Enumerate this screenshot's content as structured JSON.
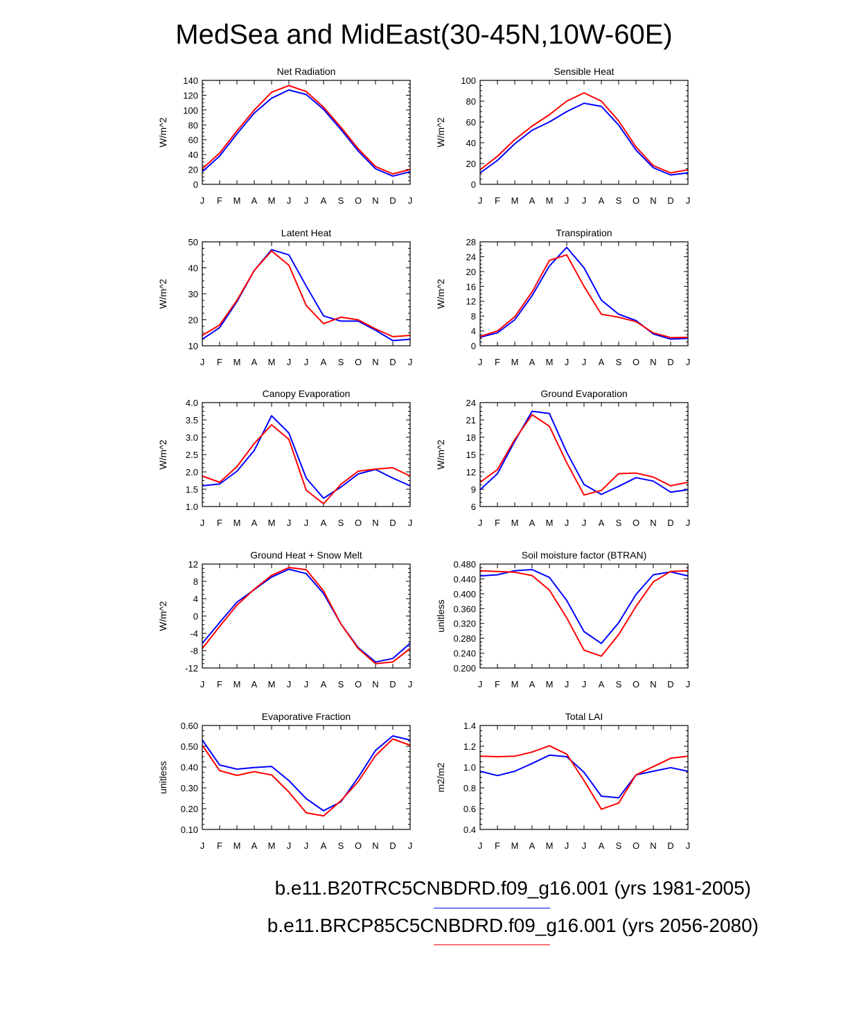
{
  "title": "MedSea and MidEast(30-45N,10W-60E)",
  "colors": {
    "series1": "#0000ff",
    "series2": "#ff0000"
  },
  "legend": [
    {
      "label": "b.e11.B20TRC5CNBDRD.f09_g16.001 (yrs 1981-2005)",
      "color": "#0000ff"
    },
    {
      "label": "b.e11.BRCP85C5CNBDRD.f09_g16.001 (yrs 2056-2080)",
      "color": "#ff0000"
    }
  ],
  "chart_data": [
    {
      "type": "line",
      "title": "Net Radiation",
      "ylabel": "W/m^2",
      "categories": [
        "J",
        "F",
        "M",
        "A",
        "M",
        "J",
        "J",
        "A",
        "S",
        "O",
        "N",
        "D",
        "J"
      ],
      "ylim": [
        0,
        140
      ],
      "yticks": [
        "0",
        "20",
        "40",
        "60",
        "80",
        "100",
        "120",
        "140"
      ],
      "series": [
        {
          "name": "b.e11.B20TRC5CNBDRD.f09_g16.001 (yrs 1981-2005)",
          "values": [
            17,
            38,
            68,
            96,
            116,
            127,
            121,
            101,
            74,
            45,
            21,
            11,
            17
          ]
        },
        {
          "name": "b.e11.BRCP85C5CNBDRD.f09_g16.001 (yrs 2056-2080)",
          "values": [
            21,
            42,
            72,
            100,
            124,
            133,
            125,
            104,
            77,
            48,
            24,
            14,
            20
          ]
        }
      ]
    },
    {
      "type": "line",
      "title": "Sensible Heat",
      "ylabel": "W/m^2",
      "categories": [
        "J",
        "F",
        "M",
        "A",
        "M",
        "J",
        "J",
        "A",
        "S",
        "O",
        "N",
        "D",
        "J"
      ],
      "ylim": [
        0,
        100
      ],
      "yticks": [
        "0",
        "20",
        "40",
        "60",
        "80",
        "100"
      ],
      "series": [
        {
          "name": "b.e11.B20TRC5CNBDRD.f09_g16.001 (yrs 1981-2005)",
          "values": [
            11,
            23,
            39,
            52,
            60,
            70,
            78,
            75,
            57,
            33,
            16,
            9,
            11
          ]
        },
        {
          "name": "b.e11.BRCP85C5CNBDRD.f09_g16.001 (yrs 2056-2080)",
          "values": [
            14,
            27,
            43,
            56,
            67,
            80,
            88,
            80,
            61,
            36,
            18,
            11,
            14
          ]
        }
      ]
    },
    {
      "type": "line",
      "title": "Latent Heat",
      "ylabel": "W/m^2",
      "categories": [
        "J",
        "F",
        "M",
        "A",
        "M",
        "J",
        "J",
        "A",
        "S",
        "O",
        "N",
        "D",
        "J"
      ],
      "ylim": [
        10,
        50
      ],
      "yticks": [
        "10",
        "20",
        "30",
        "40",
        "50"
      ],
      "series": [
        {
          "name": "b.e11.B20TRC5CNBDRD.f09_g16.001 (yrs 1981-2005)",
          "values": [
            12.5,
            17,
            27,
            39,
            47,
            45,
            33,
            21.5,
            19.5,
            19.5,
            16,
            12,
            12.5
          ]
        },
        {
          "name": "b.e11.BRCP85C5CNBDRD.f09_g16.001 (yrs 2056-2080)",
          "values": [
            14,
            18,
            27.5,
            39,
            46.5,
            41,
            25.5,
            18.5,
            21,
            20,
            16.5,
            13.5,
            14
          ]
        }
      ]
    },
    {
      "type": "line",
      "title": "Transpiration",
      "ylabel": "W/m^2",
      "categories": [
        "J",
        "F",
        "M",
        "A",
        "M",
        "J",
        "J",
        "A",
        "S",
        "O",
        "N",
        "D",
        "J"
      ],
      "ylim": [
        0,
        28
      ],
      "yticks": [
        "0",
        "4",
        "8",
        "12",
        "16",
        "20",
        "24",
        "28"
      ],
      "series": [
        {
          "name": "b.e11.B20TRC5CNBDRD.f09_g16.001 (yrs 1981-2005)",
          "values": [
            2.3,
            3.5,
            7,
            13.5,
            21.5,
            26.5,
            21,
            12.3,
            8.5,
            6.8,
            3.2,
            1.8,
            2
          ]
        },
        {
          "name": "b.e11.BRCP85C5CNBDRD.f09_g16.001 (yrs 2056-2080)",
          "values": [
            2.5,
            4,
            7.8,
            14.5,
            23,
            24.5,
            16,
            8.5,
            7.7,
            6.5,
            3.5,
            2.2,
            2.3
          ]
        }
      ]
    },
    {
      "type": "line",
      "title": "Canopy Evaporation",
      "ylabel": "W/m^2",
      "categories": [
        "J",
        "F",
        "M",
        "A",
        "M",
        "J",
        "J",
        "A",
        "S",
        "O",
        "N",
        "D",
        "J"
      ],
      "ylim": [
        1.0,
        4.0
      ],
      "yticks": [
        "1.0",
        "1.5",
        "2.0",
        "2.5",
        "3.0",
        "3.5",
        "4.0"
      ],
      "series": [
        {
          "name": "b.e11.B20TRC5CNBDRD.f09_g16.001 (yrs 1981-2005)",
          "values": [
            1.6,
            1.65,
            2.02,
            2.62,
            3.62,
            3.12,
            1.82,
            1.24,
            1.56,
            1.94,
            2.07,
            1.82,
            1.6
          ]
        },
        {
          "name": "b.e11.BRCP85C5CNBDRD.f09_g16.001 (yrs 2056-2080)",
          "values": [
            1.88,
            1.7,
            2.15,
            2.82,
            3.36,
            2.94,
            1.47,
            1.08,
            1.64,
            2.02,
            2.08,
            2.12,
            1.88
          ]
        }
      ]
    },
    {
      "type": "line",
      "title": "Ground Evaporation",
      "ylabel": "W/m^2",
      "categories": [
        "J",
        "F",
        "M",
        "A",
        "M",
        "J",
        "J",
        "A",
        "S",
        "O",
        "N",
        "D",
        "J"
      ],
      "ylim": [
        6,
        24
      ],
      "yticks": [
        "6",
        "9",
        "12",
        "15",
        "18",
        "21",
        "24"
      ],
      "series": [
        {
          "name": "b.e11.B20TRC5CNBDRD.f09_g16.001 (yrs 1981-2005)",
          "values": [
            8.9,
            11.7,
            17.3,
            22.5,
            22.1,
            15.4,
            9.8,
            8.1,
            9.5,
            11,
            10.4,
            8.5,
            8.9
          ]
        },
        {
          "name": "b.e11.BRCP85C5CNBDRD.f09_g16.001 (yrs 2056-2080)",
          "values": [
            10.2,
            12.4,
            17.6,
            21.9,
            19.9,
            13.6,
            8,
            8.8,
            11.7,
            11.8,
            11.1,
            9.6,
            10.2
          ]
        }
      ]
    },
    {
      "type": "line",
      "title": "Ground Heat + Snow Melt",
      "ylabel": "W/m^2",
      "categories": [
        "J",
        "F",
        "M",
        "A",
        "M",
        "J",
        "J",
        "A",
        "S",
        "O",
        "N",
        "D",
        "J"
      ],
      "ylim": [
        -12,
        12
      ],
      "yticks": [
        "-12",
        "-8",
        "-4",
        "0",
        "4",
        "8",
        "12"
      ],
      "series": [
        {
          "name": "b.e11.B20TRC5CNBDRD.f09_g16.001 (yrs 1981-2005)",
          "values": [
            -6.3,
            -1.5,
            3.2,
            6.1,
            9,
            10.8,
            9.8,
            5.2,
            -1.8,
            -7.3,
            -10.6,
            -9.8,
            -6.3
          ]
        },
        {
          "name": "b.e11.BRCP85C5CNBDRD.f09_g16.001 (yrs 2056-2080)",
          "values": [
            -7.5,
            -2.4,
            2.5,
            6.2,
            9.4,
            11.2,
            10.7,
            5.8,
            -1.8,
            -7.5,
            -11,
            -10.6,
            -7.5
          ]
        }
      ]
    },
    {
      "type": "line",
      "title": "Soil moisture factor (BTRAN)",
      "ylabel": "unitless",
      "categories": [
        "J",
        "F",
        "M",
        "A",
        "M",
        "J",
        "J",
        "A",
        "S",
        "O",
        "N",
        "D",
        "J"
      ],
      "ylim": [
        0.2,
        0.48
      ],
      "yticks": [
        "0.200",
        "0.240",
        "0.280",
        "0.320",
        "0.360",
        "0.400",
        "0.440",
        "0.480"
      ],
      "series": [
        {
          "name": "b.e11.B20TRC5CNBDRD.f09_g16.001 (yrs 1981-2005)",
          "values": [
            0.448,
            0.451,
            0.462,
            0.465,
            0.444,
            0.382,
            0.298,
            0.266,
            0.322,
            0.398,
            0.451,
            0.459,
            0.448
          ]
        },
        {
          "name": "b.e11.BRCP85C5CNBDRD.f09_g16.001 (yrs 2056-2080)",
          "values": [
            0.462,
            0.46,
            0.458,
            0.449,
            0.41,
            0.335,
            0.248,
            0.232,
            0.29,
            0.366,
            0.432,
            0.46,
            0.462
          ]
        }
      ]
    },
    {
      "type": "line",
      "title": "Evaporative Fraction",
      "ylabel": "unitless",
      "categories": [
        "J",
        "F",
        "M",
        "A",
        "M",
        "J",
        "J",
        "A",
        "S",
        "O",
        "N",
        "D",
        "J"
      ],
      "ylim": [
        0.1,
        0.6
      ],
      "yticks": [
        "0.10",
        "0.20",
        "0.30",
        "0.40",
        "0.50",
        "0.60"
      ],
      "series": [
        {
          "name": "b.e11.B20TRC5CNBDRD.f09_g16.001 (yrs 1981-2005)",
          "values": [
            0.53,
            0.41,
            0.39,
            0.398,
            0.403,
            0.335,
            0.248,
            0.19,
            0.233,
            0.35,
            0.48,
            0.55,
            0.53
          ]
        },
        {
          "name": "b.e11.BRCP85C5CNBDRD.f09_g16.001 (yrs 2056-2080)",
          "values": [
            0.505,
            0.383,
            0.36,
            0.378,
            0.362,
            0.28,
            0.18,
            0.165,
            0.238,
            0.33,
            0.455,
            0.535,
            0.505
          ]
        }
      ]
    },
    {
      "type": "line",
      "title": "Total LAI",
      "ylabel": "m2/m2",
      "categories": [
        "J",
        "F",
        "M",
        "A",
        "M",
        "J",
        "J",
        "A",
        "S",
        "O",
        "N",
        "D",
        "J"
      ],
      "ylim": [
        0.4,
        1.4
      ],
      "yticks": [
        "0.4",
        "0.6",
        "0.8",
        "1.0",
        "1.2",
        "1.4"
      ],
      "series": [
        {
          "name": "b.e11.B20TRC5CNBDRD.f09_g16.001 (yrs 1981-2005)",
          "values": [
            0.96,
            0.918,
            0.96,
            1.035,
            1.115,
            1.1,
            0.95,
            0.72,
            0.705,
            0.925,
            0.96,
            0.995,
            0.96
          ]
        },
        {
          "name": "b.e11.BRCP85C5CNBDRD.f09_g16.001 (yrs 2056-2080)",
          "values": [
            1.105,
            1.1,
            1.105,
            1.145,
            1.205,
            1.125,
            0.87,
            0.595,
            0.655,
            0.925,
            1.005,
            1.085,
            1.105
          ]
        }
      ]
    }
  ]
}
